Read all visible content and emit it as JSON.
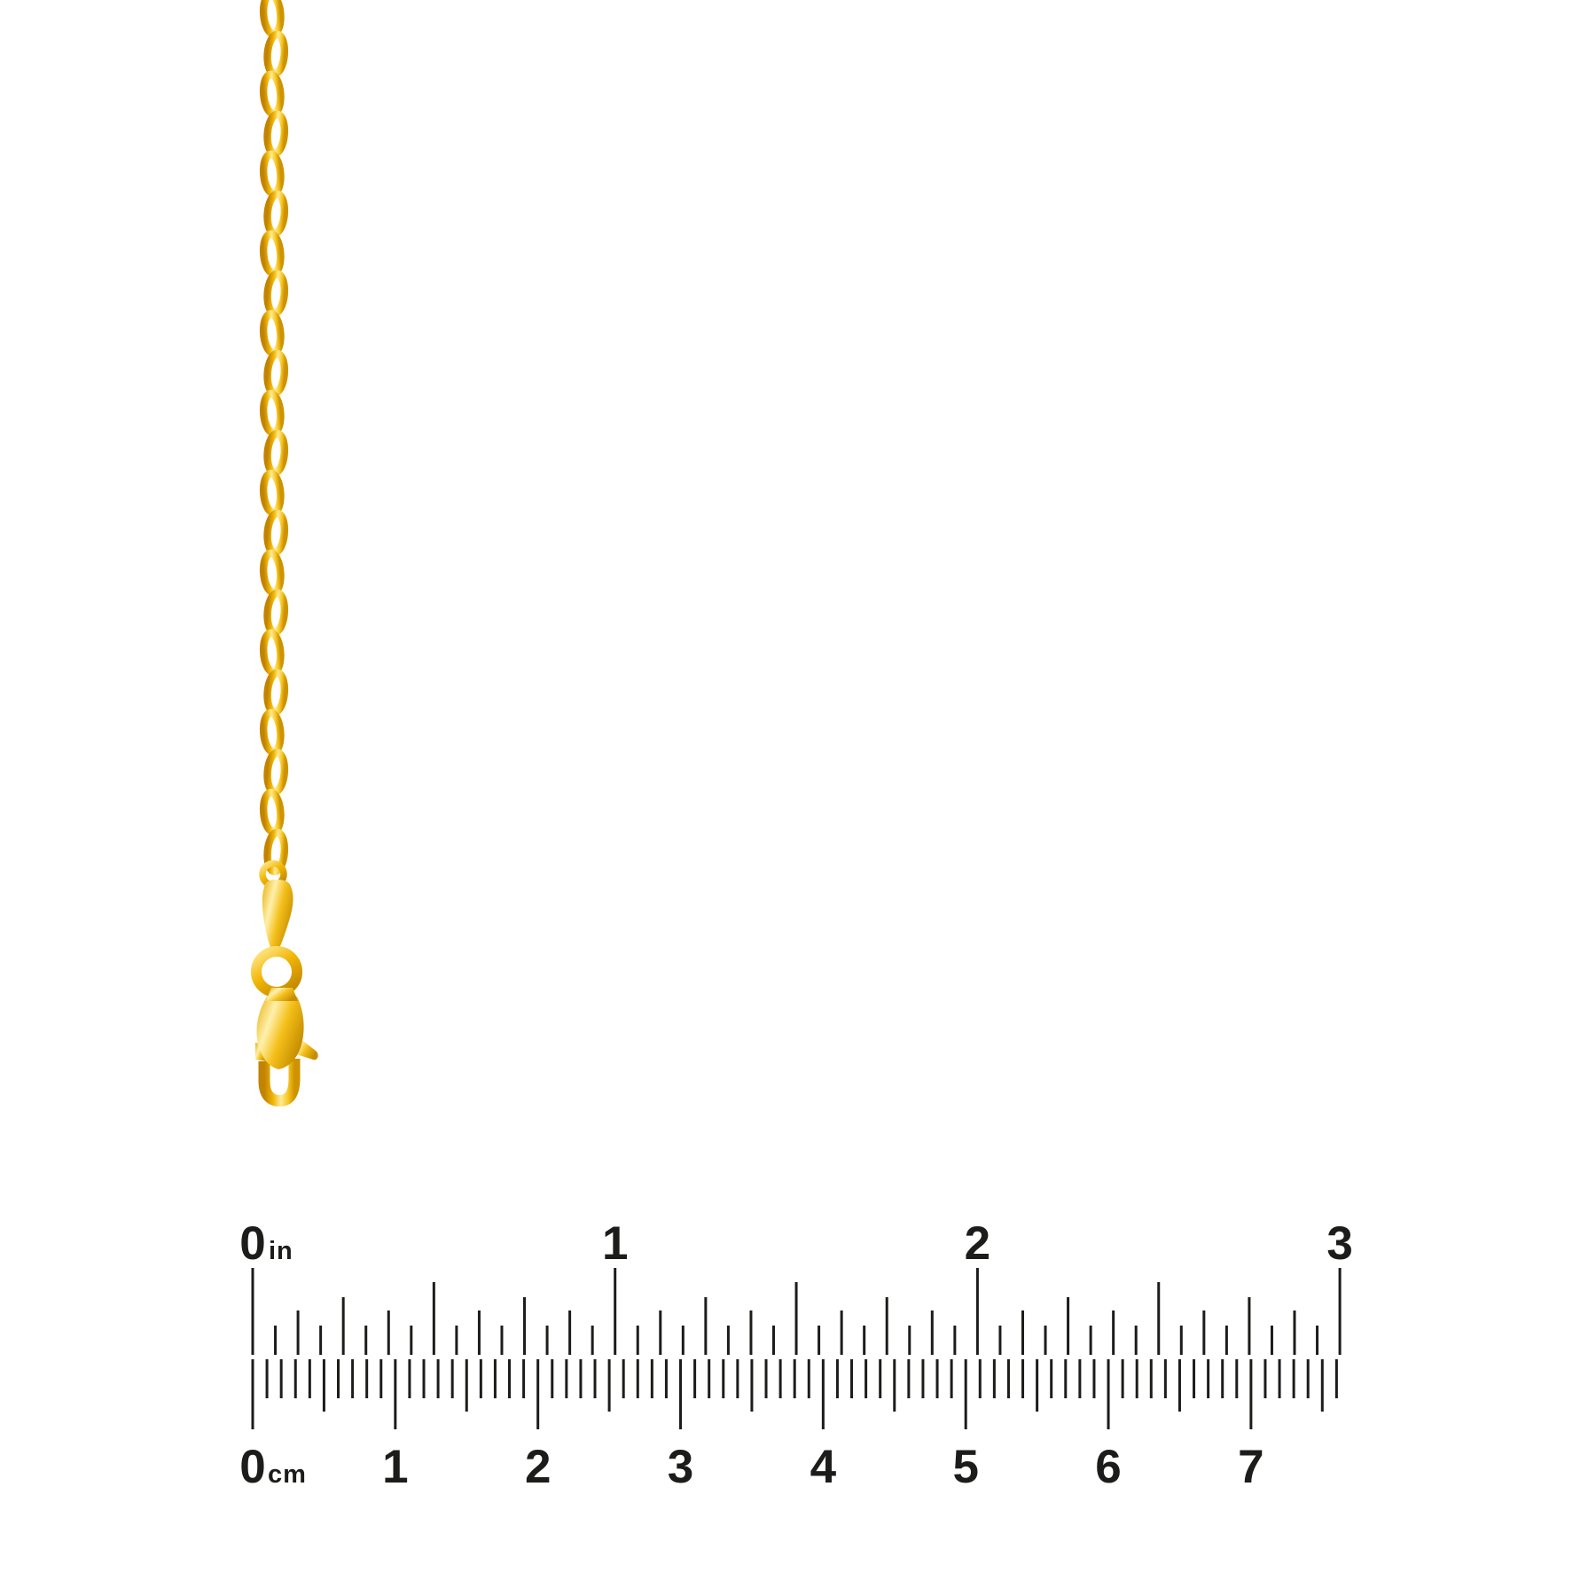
{
  "photo": {
    "subject": "gold-cable-chain-with-lobster-clasp",
    "background_color": "#ffffff"
  },
  "chain": {
    "link_count": 22,
    "colors": {
      "shadow": "#C18300",
      "mid": "#F2B606",
      "highlight": "#FFEC96",
      "bright": "#FFF3B8",
      "deep": "#CE9300"
    }
  },
  "ruler": {
    "color": "#1c1c1a",
    "inches": {
      "unit": "in",
      "min": 0,
      "max": 3,
      "subdivisions_per_unit": 16,
      "labels": [
        "0",
        "1",
        "2",
        "3"
      ]
    },
    "cm": {
      "unit": "cm",
      "min": 0,
      "max": 7.6,
      "subdivisions_per_unit": 10,
      "labels": [
        "0",
        "1",
        "2",
        "3",
        "4",
        "5",
        "6",
        "7"
      ]
    }
  }
}
